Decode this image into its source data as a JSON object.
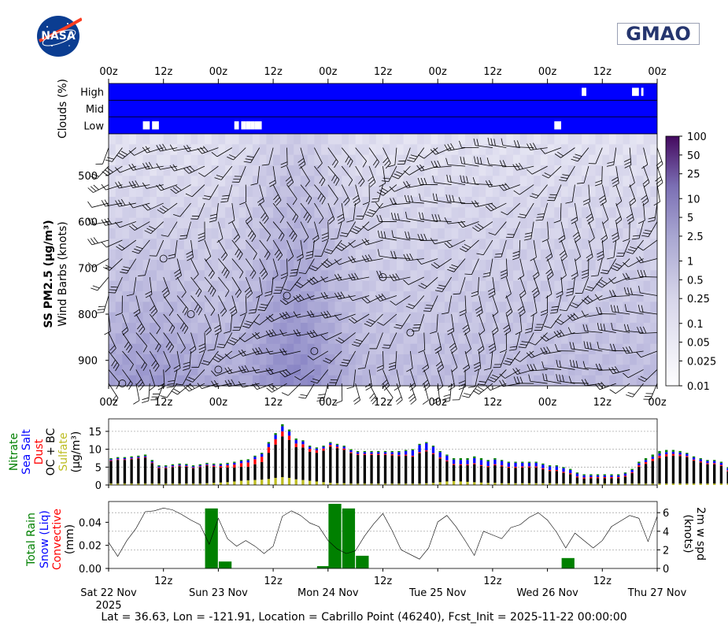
{
  "logos": {
    "left": "NASA",
    "right": "GMAO"
  },
  "footer": "Lat = 36.63, Lon = -121.91, Location = Cabrillo Point (46240), Fcst_Init = 2025-11-22 00:00:00",
  "time_ticks": [
    "00z",
    "12z",
    "00z",
    "12z",
    "00z",
    "12z",
    "00z",
    "12z",
    "00z",
    "12z",
    "00z"
  ],
  "date_ticks": [
    {
      "label": "Sat 22 Nov",
      "sub": "2025"
    },
    {
      "label": "Sun 23 Nov",
      "sub": ""
    },
    {
      "label": "Mon 24 Nov",
      "sub": ""
    },
    {
      "label": "Tue 25 Nov",
      "sub": ""
    },
    {
      "label": "Wed 26 Nov",
      "sub": ""
    },
    {
      "label": "Thu 27 Nov",
      "sub": ""
    }
  ],
  "colors": {
    "cloud": "#0000ff",
    "rain": "#008000",
    "snow": "#0000ff",
    "convective": "#ff0000",
    "nitrate": "#008000",
    "seasalt": "#0000ff",
    "dust": "#ff0000",
    "ocbc": "#000000",
    "sulfate": "#bdbd22"
  },
  "chart_data": [
    {
      "type": "heatmap",
      "name": "clouds",
      "ylabel": "Clouds (%)",
      "rows": [
        "High",
        "Mid",
        "Low"
      ],
      "x_unit": "hours since 2025-11-22 00z",
      "xlim": [
        0,
        120
      ],
      "clear_gaps": {
        "High": [
          [
            103.5,
            104.5
          ],
          [
            114.5,
            116.0
          ],
          [
            116.5,
            117.0
          ]
        ],
        "Mid": [],
        "Low": [
          [
            7.5,
            9.0
          ],
          [
            9.5,
            11.0
          ],
          [
            27.5,
            28.5
          ],
          [
            29.0,
            30.0
          ],
          [
            30.0,
            31.0
          ],
          [
            31.0,
            32.0
          ],
          [
            32.0,
            33.5
          ],
          [
            97.5,
            99.0
          ]
        ]
      }
    },
    {
      "type": "heatmap",
      "name": "ss-pm25-profile",
      "ylabel": "SS PM2.5 (μg/m³)",
      "ylabel2": "Wind Barbs (knots)",
      "yticks": [
        500,
        600,
        700,
        800,
        900
      ],
      "ylim": [
        955,
        410
      ],
      "xlim": [
        0,
        120
      ],
      "colorbar": {
        "ticks": [
          "100",
          "50",
          "25",
          "10",
          "5",
          "2.5",
          "1",
          "0.5",
          "0.25",
          "0.1",
          "0.05",
          "0.025",
          "0.01"
        ],
        "scale": "log"
      }
    },
    {
      "type": "bar",
      "name": "aerosol-species",
      "ylabel": "(μg/m³)",
      "legend": [
        "Nitrate",
        "Sea Salt",
        "Dust",
        "OC + BC",
        "Sulfate"
      ],
      "yticks": [
        0,
        5,
        10,
        15
      ],
      "ylim": [
        0,
        18.5
      ],
      "xlim": [
        0,
        120
      ],
      "x_step_hours": 1.5,
      "total": [
        7.5,
        7.8,
        7.8,
        8.0,
        8.2,
        8.5,
        7.0,
        5.5,
        5.5,
        5.8,
        6.0,
        5.9,
        5.5,
        5.8,
        6.2,
        6.0,
        6.0,
        6.2,
        6.5,
        7.0,
        7.2,
        8.2,
        9.0,
        12.0,
        14.5,
        17.0,
        15.5,
        13.0,
        12.5,
        11.0,
        10.5,
        11.0,
        12.0,
        11.5,
        11.0,
        10.0,
        9.5,
        9.5,
        9.5,
        9.5,
        9.5,
        9.5,
        9.5,
        9.8,
        10.0,
        11.5,
        12.0,
        11.0,
        9.5,
        8.5,
        7.5,
        7.5,
        7.5,
        8.0,
        7.5,
        7.0,
        7.5,
        7.0,
        6.5,
        6.5,
        6.5,
        6.5,
        6.5,
        6.0,
        5.5,
        5.5,
        5.0,
        4.5,
        3.5,
        3.0,
        3.0,
        3.0,
        3.0,
        3.0,
        3.0,
        3.5,
        4.5,
        6.5,
        7.5,
        8.5,
        9.5,
        9.8,
        9.8,
        9.5,
        9.0,
        8.0,
        7.5,
        7.0,
        7.0,
        6.5,
        5.0,
        4.5,
        4.5,
        4.5,
        5.0,
        5.5,
        6.5,
        8.0,
        10.5,
        12.0,
        13.0,
        12.0,
        11.0,
        10.0,
        10.0,
        10.0,
        9.5,
        9.5,
        9.0,
        8.5,
        8.0,
        7.5,
        7.5,
        7.0,
        6.5,
        5.5
      ],
      "sulfate": [
        0.4,
        0.4,
        0.4,
        0.4,
        0.4,
        0.4,
        0.4,
        0.4,
        0.4,
        0.4,
        0.4,
        0.4,
        0.4,
        0.4,
        0.5,
        0.6,
        0.7,
        0.8,
        1.0,
        1.2,
        1.3,
        1.4,
        1.5,
        1.7,
        2.0,
        2.2,
        2.0,
        1.6,
        1.4,
        1.2,
        1.0,
        0.8,
        0.6,
        0.5,
        0.5,
        0.4,
        0.4,
        0.4,
        0.4,
        0.4,
        0.4,
        0.4,
        0.4,
        0.4,
        0.4,
        0.4,
        0.5,
        0.6,
        0.8,
        1.0,
        1.1,
        1.0,
        0.9,
        0.8,
        0.7,
        0.6,
        0.6,
        0.5,
        0.5,
        0.5,
        0.5,
        0.5,
        0.5,
        0.5,
        0.5,
        0.4,
        0.4,
        0.4,
        0.4,
        0.4,
        0.4,
        0.4,
        0.4,
        0.4,
        0.4,
        0.4,
        0.4,
        0.4,
        0.4,
        0.4,
        0.4,
        0.4,
        0.4,
        0.4,
        0.4,
        0.4,
        0.4,
        0.4,
        0.4,
        0.4,
        0.4,
        0.4,
        0.4,
        0.4,
        0.4,
        0.4,
        0.4,
        0.4,
        0.4,
        0.4,
        0.4,
        0.4,
        0.4,
        0.4,
        0.4,
        0.4,
        0.4,
        0.4,
        0.4,
        0.4,
        0.4,
        0.4,
        0.4,
        0.4
      ],
      "nitrate": [
        0.3,
        0.3,
        0.3,
        0.3,
        0.3,
        0.4,
        0.4,
        0.3,
        0.3,
        0.3,
        0.3,
        0.3,
        0.3,
        0.3,
        0.3,
        0.3,
        0.3,
        0.3,
        0.3,
        0.3,
        0.3,
        0.3,
        0.3,
        0.4,
        0.5,
        0.6,
        0.5,
        0.4,
        0.3,
        0.3,
        0.3,
        0.3,
        0.3,
        0.3,
        0.3,
        0.3,
        0.3,
        0.3,
        0.3,
        0.3,
        0.3,
        0.3,
        0.3,
        0.3,
        0.3,
        0.3,
        0.3,
        0.3,
        0.3,
        0.3,
        0.4,
        0.5,
        0.5,
        0.5,
        0.5,
        0.4,
        0.4,
        0.3,
        0.3,
        0.3,
        0.3,
        0.3,
        0.3,
        0.3,
        0.3,
        0.3,
        0.3,
        0.3,
        0.3,
        0.3,
        0.3,
        0.3,
        0.3,
        0.3,
        0.3,
        0.3,
        0.3,
        0.4,
        0.5,
        0.6,
        0.7,
        0.6,
        0.5,
        0.4,
        0.3,
        0.3,
        0.3,
        0.3,
        0.3,
        0.3,
        0.3,
        0.3,
        0.3,
        0.3,
        0.3,
        0.3,
        0.3,
        0.3,
        0.3,
        0.3,
        0.3,
        0.3,
        0.3,
        0.3,
        0.3,
        0.3,
        0.3,
        0.3,
        0.3,
        0.3,
        0.3,
        0.3,
        0.3,
        0.3,
        0.3,
        0.3
      ],
      "seasalt": [
        0.3,
        0.3,
        0.3,
        0.3,
        0.3,
        0.3,
        0.3,
        0.3,
        0.3,
        0.3,
        0.3,
        0.3,
        0.3,
        0.3,
        0.3,
        0.3,
        0.4,
        0.4,
        0.5,
        0.6,
        0.6,
        0.7,
        0.8,
        1.0,
        1.2,
        1.4,
        1.2,
        1.0,
        0.8,
        0.6,
        0.5,
        0.5,
        0.5,
        0.5,
        0.5,
        0.5,
        0.5,
        0.5,
        0.5,
        0.5,
        0.5,
        0.6,
        0.8,
        1.0,
        1.5,
        2.0,
        2.0,
        1.8,
        1.5,
        1.3,
        1.2,
        1.2,
        1.2,
        1.4,
        1.4,
        1.3,
        1.3,
        1.2,
        1.1,
        1.1,
        1.0,
        1.0,
        1.0,
        1.0,
        1.0,
        1.0,
        1.0,
        0.9,
        0.8,
        0.6,
        0.5,
        0.5,
        0.5,
        0.5,
        0.5,
        0.6,
        0.6,
        0.6,
        0.6,
        0.6,
        0.6,
        0.6,
        0.6,
        0.6,
        0.6,
        0.6,
        0.6,
        0.6,
        0.6,
        0.6,
        0.6,
        0.6,
        0.6,
        0.6,
        0.6,
        0.6,
        0.6,
        0.6,
        0.6,
        0.6,
        0.6,
        0.6,
        0.6,
        0.6,
        0.6,
        0.6,
        0.6,
        0.6,
        0.6,
        0.6,
        0.6,
        0.6,
        0.6,
        0.6,
        0.6,
        0.6
      ],
      "dust": [
        0.2,
        0.2,
        0.2,
        0.2,
        0.2,
        0.2,
        0.2,
        0.2,
        0.2,
        0.2,
        0.2,
        0.2,
        0.2,
        0.2,
        0.2,
        0.3,
        0.4,
        0.6,
        0.8,
        1.0,
        1.2,
        1.4,
        1.5,
        1.6,
        1.5,
        1.4,
        1.2,
        1.0,
        0.9,
        0.8,
        0.7,
        0.6,
        0.5,
        0.4,
        0.4,
        0.3,
        0.3,
        0.3,
        0.3,
        0.3,
        0.3,
        0.3,
        0.3,
        0.3,
        0.3,
        0.3,
        0.3,
        0.3,
        0.3,
        0.3,
        0.3,
        0.3,
        0.3,
        0.3,
        0.3,
        0.3,
        0.3,
        0.3,
        0.3,
        0.3,
        0.3,
        0.3,
        0.3,
        0.3,
        0.3,
        0.3,
        0.3,
        0.3,
        0.3,
        0.3,
        0.3,
        0.3,
        0.3,
        0.3,
        0.3,
        0.3,
        0.3,
        0.4,
        0.5,
        0.6,
        0.7,
        0.6,
        0.5,
        0.4,
        0.3,
        0.3,
        0.3,
        0.3,
        0.3,
        0.3,
        0.3,
        0.3,
        0.4,
        0.5,
        0.6,
        0.7,
        0.8,
        0.9,
        1.0,
        1.0,
        0.9,
        0.8,
        0.7,
        0.6,
        0.6,
        0.5,
        0.5,
        0.5,
        0.4,
        0.4,
        0.4,
        0.3,
        0.3,
        0.3,
        0.3,
        0.3
      ]
    },
    {
      "type": "bar",
      "name": "precipitation",
      "ylabel": "(mm)",
      "legend": [
        "Total Rain",
        "Snow (Liq)",
        "Convective"
      ],
      "yticks": [
        "0.00",
        "0.02",
        "0.04"
      ],
      "ylim": [
        0,
        0.058
      ],
      "xlim": [
        0,
        120
      ],
      "bars": [
        {
          "x": 22.5,
          "value": 0.052
        },
        {
          "x": 25.5,
          "value": 0.006
        },
        {
          "x": 47.0,
          "value": 0.002
        },
        {
          "x": 49.5,
          "value": 0.056
        },
        {
          "x": 52.5,
          "value": 0.052
        },
        {
          "x": 55.5,
          "value": 0.011
        },
        {
          "x": 100.5,
          "value": 0.009
        }
      ]
    },
    {
      "type": "line",
      "name": "wind-speed-2m",
      "ylabel": "2m w spd",
      "ylabel_sub": "(knots)",
      "yticks": [
        "0",
        "2",
        "4",
        "6"
      ],
      "ylim": [
        0,
        7.2
      ],
      "xlim": [
        0,
        120
      ],
      "x": [
        0,
        2,
        4,
        6,
        8,
        10,
        12,
        14,
        16,
        18,
        20,
        22,
        24,
        26,
        28,
        30,
        32,
        34,
        36,
        38,
        40,
        42,
        44,
        46,
        48,
        50,
        52,
        54,
        56,
        58,
        60,
        62,
        64,
        66,
        68,
        70,
        72,
        74,
        76,
        78,
        80,
        82,
        84,
        86,
        88,
        90,
        92,
        94,
        96,
        98,
        100,
        102,
        104,
        106,
        108,
        110,
        112,
        114,
        116,
        118,
        120
      ],
      "y": [
        2.8,
        1.3,
        3.0,
        4.3,
        6.1,
        6.2,
        6.5,
        6.3,
        5.8,
        5.2,
        4.7,
        2.6,
        5.4,
        3.2,
        2.4,
        3.0,
        2.4,
        1.6,
        2.4,
        5.6,
        6.2,
        5.7,
        4.9,
        4.5,
        3.0,
        2.1,
        1.6,
        1.9,
        3.5,
        4.8,
        5.9,
        4.1,
        2.0,
        1.5,
        1.0,
        2.2,
        5.0,
        5.7,
        4.5,
        3.0,
        1.4,
        4.0,
        3.6,
        3.2,
        4.4,
        4.7,
        5.5,
        6.0,
        5.2,
        3.9,
        2.2,
        3.8,
        3.0,
        2.2,
        3.0,
        4.5,
        5.1,
        5.7,
        5.4,
        2.9,
        5.6
      ]
    }
  ]
}
